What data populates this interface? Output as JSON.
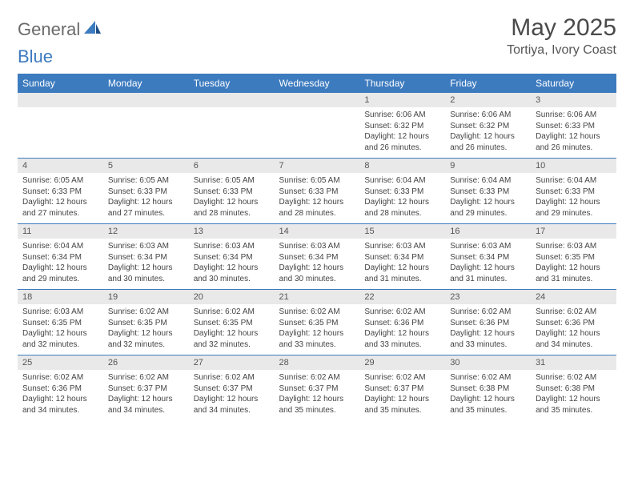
{
  "logo": {
    "general": "General",
    "blue": "Blue"
  },
  "title": "May 2025",
  "location": "Tortiya, Ivory Coast",
  "colors": {
    "header_bg": "#3d7bbf",
    "header_text": "#ffffff",
    "num_row_bg": "#e9e9e9",
    "row_border": "#3d7bbf",
    "body_text": "#444444",
    "title_text": "#4a4a4a"
  },
  "day_headers": [
    "Sunday",
    "Monday",
    "Tuesday",
    "Wednesday",
    "Thursday",
    "Friday",
    "Saturday"
  ],
  "weeks": [
    {
      "nums": [
        "",
        "",
        "",
        "",
        "1",
        "2",
        "3"
      ],
      "cells": [
        null,
        null,
        null,
        null,
        {
          "sunrise": "Sunrise: 6:06 AM",
          "sunset": "Sunset: 6:32 PM",
          "d1": "Daylight: 12 hours",
          "d2": "and 26 minutes."
        },
        {
          "sunrise": "Sunrise: 6:06 AM",
          "sunset": "Sunset: 6:32 PM",
          "d1": "Daylight: 12 hours",
          "d2": "and 26 minutes."
        },
        {
          "sunrise": "Sunrise: 6:06 AM",
          "sunset": "Sunset: 6:33 PM",
          "d1": "Daylight: 12 hours",
          "d2": "and 26 minutes."
        }
      ]
    },
    {
      "nums": [
        "4",
        "5",
        "6",
        "7",
        "8",
        "9",
        "10"
      ],
      "cells": [
        {
          "sunrise": "Sunrise: 6:05 AM",
          "sunset": "Sunset: 6:33 PM",
          "d1": "Daylight: 12 hours",
          "d2": "and 27 minutes."
        },
        {
          "sunrise": "Sunrise: 6:05 AM",
          "sunset": "Sunset: 6:33 PM",
          "d1": "Daylight: 12 hours",
          "d2": "and 27 minutes."
        },
        {
          "sunrise": "Sunrise: 6:05 AM",
          "sunset": "Sunset: 6:33 PM",
          "d1": "Daylight: 12 hours",
          "d2": "and 28 minutes."
        },
        {
          "sunrise": "Sunrise: 6:05 AM",
          "sunset": "Sunset: 6:33 PM",
          "d1": "Daylight: 12 hours",
          "d2": "and 28 minutes."
        },
        {
          "sunrise": "Sunrise: 6:04 AM",
          "sunset": "Sunset: 6:33 PM",
          "d1": "Daylight: 12 hours",
          "d2": "and 28 minutes."
        },
        {
          "sunrise": "Sunrise: 6:04 AM",
          "sunset": "Sunset: 6:33 PM",
          "d1": "Daylight: 12 hours",
          "d2": "and 29 minutes."
        },
        {
          "sunrise": "Sunrise: 6:04 AM",
          "sunset": "Sunset: 6:33 PM",
          "d1": "Daylight: 12 hours",
          "d2": "and 29 minutes."
        }
      ]
    },
    {
      "nums": [
        "11",
        "12",
        "13",
        "14",
        "15",
        "16",
        "17"
      ],
      "cells": [
        {
          "sunrise": "Sunrise: 6:04 AM",
          "sunset": "Sunset: 6:34 PM",
          "d1": "Daylight: 12 hours",
          "d2": "and 29 minutes."
        },
        {
          "sunrise": "Sunrise: 6:03 AM",
          "sunset": "Sunset: 6:34 PM",
          "d1": "Daylight: 12 hours",
          "d2": "and 30 minutes."
        },
        {
          "sunrise": "Sunrise: 6:03 AM",
          "sunset": "Sunset: 6:34 PM",
          "d1": "Daylight: 12 hours",
          "d2": "and 30 minutes."
        },
        {
          "sunrise": "Sunrise: 6:03 AM",
          "sunset": "Sunset: 6:34 PM",
          "d1": "Daylight: 12 hours",
          "d2": "and 30 minutes."
        },
        {
          "sunrise": "Sunrise: 6:03 AM",
          "sunset": "Sunset: 6:34 PM",
          "d1": "Daylight: 12 hours",
          "d2": "and 31 minutes."
        },
        {
          "sunrise": "Sunrise: 6:03 AM",
          "sunset": "Sunset: 6:34 PM",
          "d1": "Daylight: 12 hours",
          "d2": "and 31 minutes."
        },
        {
          "sunrise": "Sunrise: 6:03 AM",
          "sunset": "Sunset: 6:35 PM",
          "d1": "Daylight: 12 hours",
          "d2": "and 31 minutes."
        }
      ]
    },
    {
      "nums": [
        "18",
        "19",
        "20",
        "21",
        "22",
        "23",
        "24"
      ],
      "cells": [
        {
          "sunrise": "Sunrise: 6:03 AM",
          "sunset": "Sunset: 6:35 PM",
          "d1": "Daylight: 12 hours",
          "d2": "and 32 minutes."
        },
        {
          "sunrise": "Sunrise: 6:02 AM",
          "sunset": "Sunset: 6:35 PM",
          "d1": "Daylight: 12 hours",
          "d2": "and 32 minutes."
        },
        {
          "sunrise": "Sunrise: 6:02 AM",
          "sunset": "Sunset: 6:35 PM",
          "d1": "Daylight: 12 hours",
          "d2": "and 32 minutes."
        },
        {
          "sunrise": "Sunrise: 6:02 AM",
          "sunset": "Sunset: 6:35 PM",
          "d1": "Daylight: 12 hours",
          "d2": "and 33 minutes."
        },
        {
          "sunrise": "Sunrise: 6:02 AM",
          "sunset": "Sunset: 6:36 PM",
          "d1": "Daylight: 12 hours",
          "d2": "and 33 minutes."
        },
        {
          "sunrise": "Sunrise: 6:02 AM",
          "sunset": "Sunset: 6:36 PM",
          "d1": "Daylight: 12 hours",
          "d2": "and 33 minutes."
        },
        {
          "sunrise": "Sunrise: 6:02 AM",
          "sunset": "Sunset: 6:36 PM",
          "d1": "Daylight: 12 hours",
          "d2": "and 34 minutes."
        }
      ]
    },
    {
      "nums": [
        "25",
        "26",
        "27",
        "28",
        "29",
        "30",
        "31"
      ],
      "cells": [
        {
          "sunrise": "Sunrise: 6:02 AM",
          "sunset": "Sunset: 6:36 PM",
          "d1": "Daylight: 12 hours",
          "d2": "and 34 minutes."
        },
        {
          "sunrise": "Sunrise: 6:02 AM",
          "sunset": "Sunset: 6:37 PM",
          "d1": "Daylight: 12 hours",
          "d2": "and 34 minutes."
        },
        {
          "sunrise": "Sunrise: 6:02 AM",
          "sunset": "Sunset: 6:37 PM",
          "d1": "Daylight: 12 hours",
          "d2": "and 34 minutes."
        },
        {
          "sunrise": "Sunrise: 6:02 AM",
          "sunset": "Sunset: 6:37 PM",
          "d1": "Daylight: 12 hours",
          "d2": "and 35 minutes."
        },
        {
          "sunrise": "Sunrise: 6:02 AM",
          "sunset": "Sunset: 6:37 PM",
          "d1": "Daylight: 12 hours",
          "d2": "and 35 minutes."
        },
        {
          "sunrise": "Sunrise: 6:02 AM",
          "sunset": "Sunset: 6:38 PM",
          "d1": "Daylight: 12 hours",
          "d2": "and 35 minutes."
        },
        {
          "sunrise": "Sunrise: 6:02 AM",
          "sunset": "Sunset: 6:38 PM",
          "d1": "Daylight: 12 hours",
          "d2": "and 35 minutes."
        }
      ]
    }
  ]
}
